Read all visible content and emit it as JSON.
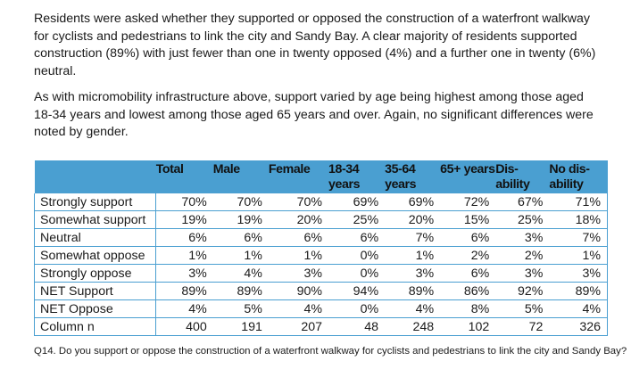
{
  "paragraphs": [
    "Residents were asked whether they supported or opposed the construction of a waterfront walkway for cyclists and pedestrians to link the city and Sandy Bay. A clear majority of residents supported construction (89%) with just fewer than one in twenty opposed (4%) and a further one in twenty (6%) neutral.",
    "As with micromobility infrastructure above, support varied by age being highest among those aged 18-34 years and lowest among those aged 65 years and over. Again, no significant differences were noted by gender."
  ],
  "table": {
    "columns": [
      "",
      "Total",
      "Male",
      "Female",
      "18-34 years",
      "35-64 years",
      "65+ years",
      "Dis-ability",
      "No dis-ability"
    ],
    "rows": [
      {
        "label": "Strongly support",
        "values": [
          "70%",
          "70%",
          "70%",
          "69%",
          "69%",
          "72%",
          "67%",
          "71%"
        ]
      },
      {
        "label": "Somewhat support",
        "values": [
          "19%",
          "19%",
          "20%",
          "25%",
          "20%",
          "15%",
          "25%",
          "18%"
        ]
      },
      {
        "label": "Neutral",
        "values": [
          "6%",
          "6%",
          "6%",
          "6%",
          "7%",
          "6%",
          "3%",
          "7%"
        ]
      },
      {
        "label": "Somewhat oppose",
        "values": [
          "1%",
          "1%",
          "1%",
          "0%",
          "1%",
          "2%",
          "2%",
          "1%"
        ]
      },
      {
        "label": "Strongly oppose",
        "values": [
          "3%",
          "4%",
          "3%",
          "0%",
          "3%",
          "6%",
          "3%",
          "3%"
        ]
      },
      {
        "label": "NET Support",
        "values": [
          "89%",
          "89%",
          "90%",
          "94%",
          "89%",
          "86%",
          "92%",
          "89%"
        ]
      },
      {
        "label": "NET Oppose",
        "values": [
          "4%",
          "5%",
          "4%",
          "0%",
          "4%",
          "8%",
          "5%",
          "4%"
        ]
      },
      {
        "label": "Column n",
        "values": [
          "400",
          "191",
          "207",
          "48",
          "248",
          "102",
          "72",
          "326"
        ]
      }
    ]
  },
  "footnote": "Q14. Do you support or oppose the construction of a waterfront walkway for cyclists and pedestrians to link the city and Sandy Bay?",
  "colors": {
    "header_bg": "#4a9fd1",
    "border": "#4a9fd1",
    "text": "#1a1a1a"
  }
}
